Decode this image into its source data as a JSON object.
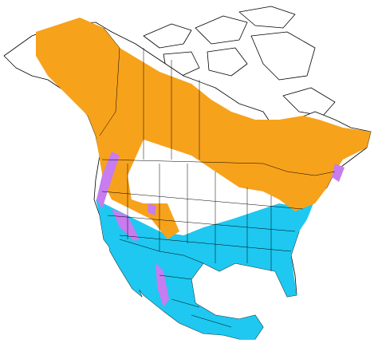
{
  "map": {
    "range_colors": [
      "#f7a21b",
      "#1ec8f0",
      "#c77cf0",
      "#ffffff"
    ]
  }
}
